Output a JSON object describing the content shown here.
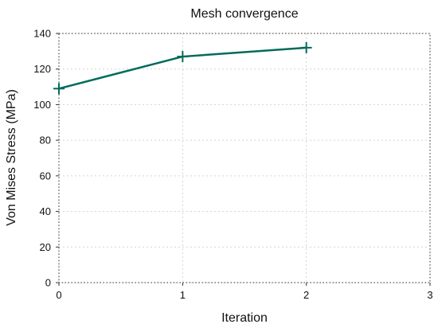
{
  "chart_data": {
    "type": "line",
    "title": "Mesh convergence",
    "xlabel": "Iteration",
    "ylabel": "Von Mises Stress (MPa)",
    "xlim": [
      0,
      3
    ],
    "ylim": [
      0,
      140
    ],
    "xticks": [
      0,
      1,
      2,
      3
    ],
    "yticks": [
      0,
      20,
      40,
      60,
      80,
      100,
      120,
      140
    ],
    "grid": true,
    "series": [
      {
        "x": [
          0,
          1,
          2
        ],
        "y": [
          109,
          127,
          132
        ],
        "color": "#006b5b",
        "marker": "plus"
      }
    ]
  }
}
